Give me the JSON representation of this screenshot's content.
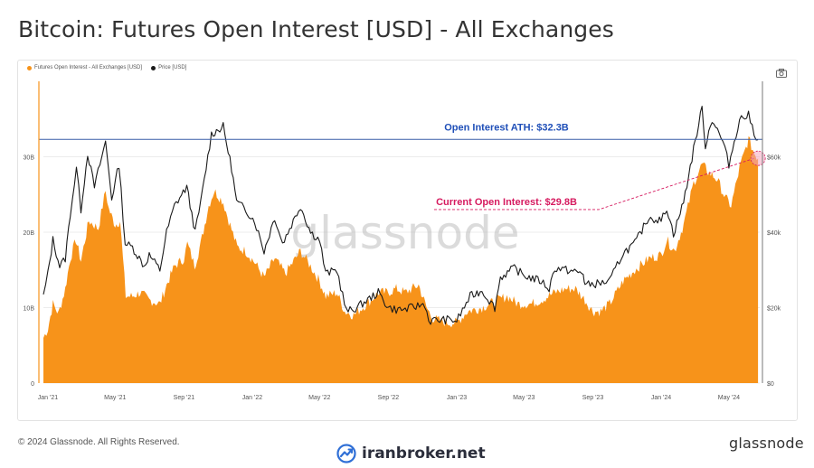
{
  "page": {
    "title": "Bitcoin: Futures Open Interest [USD] - All Exchanges",
    "copyright": "© 2024 Glassnode. All Rights Reserved.",
    "brand": "glassnode",
    "watermark": "glassnode",
    "partner": "iranbroker.net"
  },
  "colors": {
    "oi_fill": "#f7931a",
    "price_line": "#1a1a1a",
    "ath_line": "#3a5ea8",
    "ath_label": "#1f4fb8",
    "current_label": "#d61a5f"
  },
  "chart_data": {
    "type": "area",
    "x_tick_labels": [
      "Jan '21",
      "May '21",
      "Sep '21",
      "Jan '22",
      "May '22",
      "Sep '22",
      "Jan '23",
      "May '23",
      "Sep '23",
      "Jan '24",
      "May '24"
    ],
    "y_left_tick_labels": [
      "0",
      "10B",
      "20B",
      "30B"
    ],
    "y_right_tick_labels": [
      "$0",
      "$20k",
      "$40k",
      "$60k"
    ],
    "ylim_left": [
      0,
      40
    ],
    "ylim_right": [
      0,
      80000
    ],
    "legend": [
      "Futures Open Interest - All Exchanges [USD]",
      "Price [USD]"
    ],
    "legend_position": "top-left",
    "grid": "horizontal",
    "annotations": {
      "ath": "Open Interest ATH: $32.3B",
      "current": "Current Open Interest: $29.8B"
    },
    "series": [
      {
        "name": "Futures Open Interest - All Exchanges [USD]",
        "unit": "USD billions",
        "points": [
          [
            "2020-12-24",
            6.0
          ],
          [
            "2021-01-01",
            7.2
          ],
          [
            "2021-01-10",
            10.5
          ],
          [
            "2021-01-20",
            9.2
          ],
          [
            "2021-02-01",
            12.5
          ],
          [
            "2021-02-10",
            16.5
          ],
          [
            "2021-02-20",
            19.0
          ],
          [
            "2021-03-01",
            16.2
          ],
          [
            "2021-03-15",
            21.5
          ],
          [
            "2021-04-01",
            20.5
          ],
          [
            "2021-04-14",
            25.5
          ],
          [
            "2021-04-20",
            23.0
          ],
          [
            "2021-05-01",
            21.0
          ],
          [
            "2021-05-10",
            21.5
          ],
          [
            "2021-05-20",
            11.5
          ],
          [
            "2021-06-01",
            11.5
          ],
          [
            "2021-06-15",
            12.0
          ],
          [
            "2021-07-01",
            11.0
          ],
          [
            "2021-07-20",
            10.5
          ],
          [
            "2021-08-01",
            13.0
          ],
          [
            "2021-08-15",
            15.5
          ],
          [
            "2021-09-01",
            16.5
          ],
          [
            "2021-09-07",
            18.5
          ],
          [
            "2021-09-20",
            15.5
          ],
          [
            "2021-10-01",
            18.5
          ],
          [
            "2021-10-15",
            23.5
          ],
          [
            "2021-10-25",
            25.5
          ],
          [
            "2021-11-10",
            24.0
          ],
          [
            "2021-11-20",
            21.5
          ],
          [
            "2021-12-05",
            18.0
          ],
          [
            "2021-12-20",
            17.5
          ],
          [
            "2022-01-05",
            16.0
          ],
          [
            "2022-01-22",
            14.0
          ],
          [
            "2022-02-10",
            16.5
          ],
          [
            "2022-03-01",
            14.5
          ],
          [
            "2022-03-28",
            17.5
          ],
          [
            "2022-04-15",
            15.5
          ],
          [
            "2022-05-01",
            13.5
          ],
          [
            "2022-05-12",
            11.5
          ],
          [
            "2022-06-01",
            12.0
          ],
          [
            "2022-06-15",
            9.5
          ],
          [
            "2022-07-01",
            9.0
          ],
          [
            "2022-08-01",
            11.0
          ],
          [
            "2022-08-15",
            12.0
          ],
          [
            "2022-09-01",
            12.0
          ],
          [
            "2022-09-15",
            12.5
          ],
          [
            "2022-10-01",
            12.0
          ],
          [
            "2022-10-25",
            13.0
          ],
          [
            "2022-11-08",
            10.0
          ],
          [
            "2022-11-20",
            8.5
          ],
          [
            "2022-12-15",
            8.0
          ],
          [
            "2023-01-01",
            8.0
          ],
          [
            "2023-01-20",
            9.5
          ],
          [
            "2023-02-15",
            10.0
          ],
          [
            "2023-03-15",
            11.0
          ],
          [
            "2023-04-01",
            11.5
          ],
          [
            "2023-04-20",
            10.5
          ],
          [
            "2023-05-15",
            10.5
          ],
          [
            "2023-06-01",
            11.0
          ],
          [
            "2023-06-25",
            12.0
          ],
          [
            "2023-07-15",
            12.5
          ],
          [
            "2023-08-01",
            12.5
          ],
          [
            "2023-08-18",
            11.0
          ],
          [
            "2023-09-01",
            9.5
          ],
          [
            "2023-09-15",
            9.5
          ],
          [
            "2023-10-01",
            10.5
          ],
          [
            "2023-10-25",
            13.5
          ],
          [
            "2023-11-15",
            15.0
          ],
          [
            "2023-12-10",
            16.5
          ],
          [
            "2024-01-01",
            17.0
          ],
          [
            "2024-01-11",
            19.0
          ],
          [
            "2024-01-25",
            17.5
          ],
          [
            "2024-02-10",
            21.0
          ],
          [
            "2024-02-28",
            26.5
          ],
          [
            "2024-03-14",
            29.0
          ],
          [
            "2024-03-25",
            28.0
          ],
          [
            "2024-04-10",
            27.0
          ],
          [
            "2024-04-25",
            24.5
          ],
          [
            "2024-05-05",
            23.5
          ],
          [
            "2024-05-20",
            28.5
          ],
          [
            "2024-06-05",
            32.3
          ],
          [
            "2024-06-15",
            30.5
          ],
          [
            "2024-06-22",
            29.8
          ]
        ]
      },
      {
        "name": "Price [USD]",
        "unit": "USD",
        "points": [
          [
            "2020-12-24",
            23000
          ],
          [
            "2021-01-01",
            29000
          ],
          [
            "2021-01-10",
            38000
          ],
          [
            "2021-01-22",
            31000
          ],
          [
            "2021-02-01",
            33000
          ],
          [
            "2021-02-10",
            45000
          ],
          [
            "2021-02-21",
            57000
          ],
          [
            "2021-03-01",
            46000
          ],
          [
            "2021-03-13",
            61000
          ],
          [
            "2021-03-25",
            52000
          ],
          [
            "2021-04-14",
            64000
          ],
          [
            "2021-04-25",
            49000
          ],
          [
            "2021-05-08",
            58000
          ],
          [
            "2021-05-19",
            37000
          ],
          [
            "2021-06-01",
            36000
          ],
          [
            "2021-06-22",
            31000
          ],
          [
            "2021-07-01",
            34000
          ],
          [
            "2021-07-20",
            30000
          ],
          [
            "2021-08-01",
            40000
          ],
          [
            "2021-08-15",
            47000
          ],
          [
            "2021-09-06",
            52000
          ],
          [
            "2021-09-21",
            40000
          ],
          [
            "2021-10-01",
            48000
          ],
          [
            "2021-10-20",
            66000
          ],
          [
            "2021-11-10",
            68000
          ],
          [
            "2021-11-25",
            57000
          ],
          [
            "2021-12-04",
            48000
          ],
          [
            "2021-12-20",
            46000
          ],
          [
            "2022-01-05",
            43000
          ],
          [
            "2022-01-22",
            35000
          ],
          [
            "2022-02-10",
            44000
          ],
          [
            "2022-02-24",
            37000
          ],
          [
            "2022-03-28",
            47000
          ],
          [
            "2022-04-15",
            40000
          ],
          [
            "2022-05-01",
            38000
          ],
          [
            "2022-05-12",
            29000
          ],
          [
            "2022-06-01",
            30000
          ],
          [
            "2022-06-18",
            19000
          ],
          [
            "2022-07-01",
            19500
          ],
          [
            "2022-08-14",
            24000
          ],
          [
            "2022-09-01",
            20000
          ],
          [
            "2022-09-15",
            19500
          ],
          [
            "2022-10-01",
            19500
          ],
          [
            "2022-11-05",
            21000
          ],
          [
            "2022-11-12",
            16500
          ],
          [
            "2022-12-15",
            16800
          ],
          [
            "2023-01-01",
            16500
          ],
          [
            "2023-01-25",
            23000
          ],
          [
            "2023-02-15",
            24500
          ],
          [
            "2023-03-10",
            20000
          ],
          [
            "2023-03-20",
            28000
          ],
          [
            "2023-04-14",
            30500
          ],
          [
            "2023-05-01",
            28500
          ],
          [
            "2023-06-01",
            27000
          ],
          [
            "2023-06-15",
            25000
          ],
          [
            "2023-06-25",
            30500
          ],
          [
            "2023-07-15",
            30000
          ],
          [
            "2023-08-15",
            29000
          ],
          [
            "2023-08-18",
            26000
          ],
          [
            "2023-09-15",
            26500
          ],
          [
            "2023-10-01",
            27000
          ],
          [
            "2023-10-25",
            34500
          ],
          [
            "2023-11-15",
            37000
          ],
          [
            "2023-12-10",
            44000
          ],
          [
            "2024-01-01",
            43000
          ],
          [
            "2024-01-11",
            46500
          ],
          [
            "2024-01-23",
            39500
          ],
          [
            "2024-02-10",
            48000
          ],
          [
            "2024-02-28",
            62000
          ],
          [
            "2024-03-14",
            73000
          ],
          [
            "2024-03-20",
            63000
          ],
          [
            "2024-04-01",
            70000
          ],
          [
            "2024-04-20",
            64000
          ],
          [
            "2024-05-01",
            58000
          ],
          [
            "2024-05-20",
            70000
          ],
          [
            "2024-06-05",
            71000
          ],
          [
            "2024-06-15",
            66500
          ],
          [
            "2024-06-22",
            64500
          ]
        ]
      }
    ]
  }
}
